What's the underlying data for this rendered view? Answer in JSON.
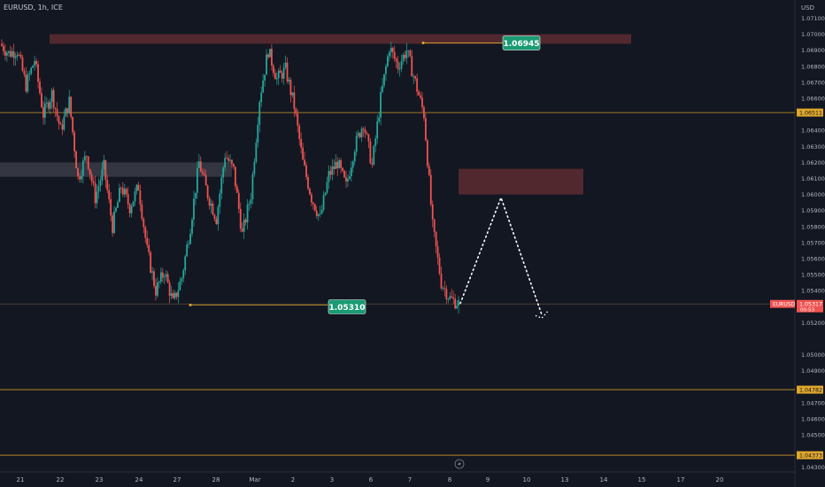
{
  "symbol_label": "EURUSD, 1h, ICE",
  "currency": "USD",
  "colors": {
    "background": "#131722",
    "candle_up": "#26a69a",
    "candle_down": "#ef5350",
    "zone_red": "#5a2a31",
    "zone_gray": "#3a3c46",
    "level_line": "#e0a72b",
    "label_green": "#1a9b73"
  },
  "chart_data": {
    "type": "candlestick",
    "title": "",
    "x_axis_labels": [
      "21",
      "22",
      "23",
      "24",
      "27",
      "28",
      "Mar",
      "2",
      "3",
      "6",
      "7",
      "8",
      "9",
      "10",
      "13",
      "14",
      "15",
      "17",
      "20"
    ],
    "y_tick_labels": [
      "1.07100",
      "1.07000",
      "1.06900",
      "1.06800",
      "1.06700",
      "1.06600",
      "1.06400",
      "1.06300",
      "1.06200",
      "1.06100",
      "1.06000",
      "1.05900",
      "1.05800",
      "1.05700",
      "1.05600",
      "1.05500",
      "1.05400",
      "1.05200",
      "1.05000",
      "1.04900",
      "1.04700",
      "1.04600",
      "1.04500",
      "1.04300"
    ],
    "y_range": [
      1.0427,
      1.0716
    ],
    "price_labels": {
      "resistance_top": "1.06945",
      "support_low": "1.05310",
      "line_level_1": "1.06511",
      "current": "1.05317",
      "current_timer": "00:53",
      "lower_level_1": "1.04782",
      "lower_level_2": "1.04373"
    },
    "horizontal_levels": [
      1.06511,
      1.05317,
      1.04782,
      1.04373
    ],
    "zones": [
      {
        "name": "resistance-zone",
        "from": 1.0694,
        "to": 1.07,
        "color": "red"
      },
      {
        "name": "gray-zone",
        "from": 1.0611,
        "to": 1.062,
        "color": "gray"
      },
      {
        "name": "target-zone",
        "from": 1.06,
        "to": 1.0616,
        "color": "red"
      }
    ],
    "price_path": [
      [
        0,
        1.0694
      ],
      [
        1,
        1.0688
      ],
      [
        2,
        1.069
      ],
      [
        3,
        1.0668
      ],
      [
        4,
        1.0684
      ],
      [
        5,
        1.065
      ],
      [
        6,
        1.0663
      ],
      [
        7,
        1.064
      ],
      [
        8,
        1.0658
      ],
      [
        9,
        1.061
      ],
      [
        10,
        1.0625
      ],
      [
        11,
        1.0598
      ],
      [
        12,
        1.0617
      ],
      [
        13,
        1.058
      ],
      [
        14,
        1.0605
      ],
      [
        15,
        1.0592
      ],
      [
        16,
        1.0605
      ],
      [
        17,
        1.0565
      ],
      [
        18,
        1.054
      ],
      [
        19,
        1.0552
      ],
      [
        20,
        1.0532
      ],
      [
        21,
        1.0548
      ],
      [
        22,
        1.058
      ],
      [
        23,
        1.062
      ],
      [
        24,
        1.06
      ],
      [
        25,
        1.0585
      ],
      [
        26,
        1.0625
      ],
      [
        27,
        1.0615
      ],
      [
        28,
        1.0575
      ],
      [
        29,
        1.06
      ],
      [
        30,
        1.066
      ],
      [
        31,
        1.069
      ],
      [
        32,
        1.0672
      ],
      [
        33,
        1.0678
      ],
      [
        34,
        1.0655
      ],
      [
        35,
        1.062
      ],
      [
        36,
        1.0598
      ],
      [
        37,
        1.0585
      ],
      [
        38,
        1.0612
      ],
      [
        39,
        1.062
      ],
      [
        40,
        1.0605
      ],
      [
        41,
        1.063
      ],
      [
        42,
        1.0645
      ],
      [
        43,
        1.0618
      ],
      [
        44,
        1.066
      ],
      [
        45,
        1.0692
      ],
      [
        46,
        1.068
      ],
      [
        47,
        1.069
      ],
      [
        48,
        1.067
      ],
      [
        49,
        1.065
      ],
      [
        50,
        1.058
      ],
      [
        51,
        1.0545
      ],
      [
        52,
        1.0535
      ],
      [
        53,
        1.0532
      ]
    ],
    "projection_path": [
      [
        1.0532
      ],
      [
        1.0598
      ],
      [
        1.0525
      ]
    ]
  }
}
